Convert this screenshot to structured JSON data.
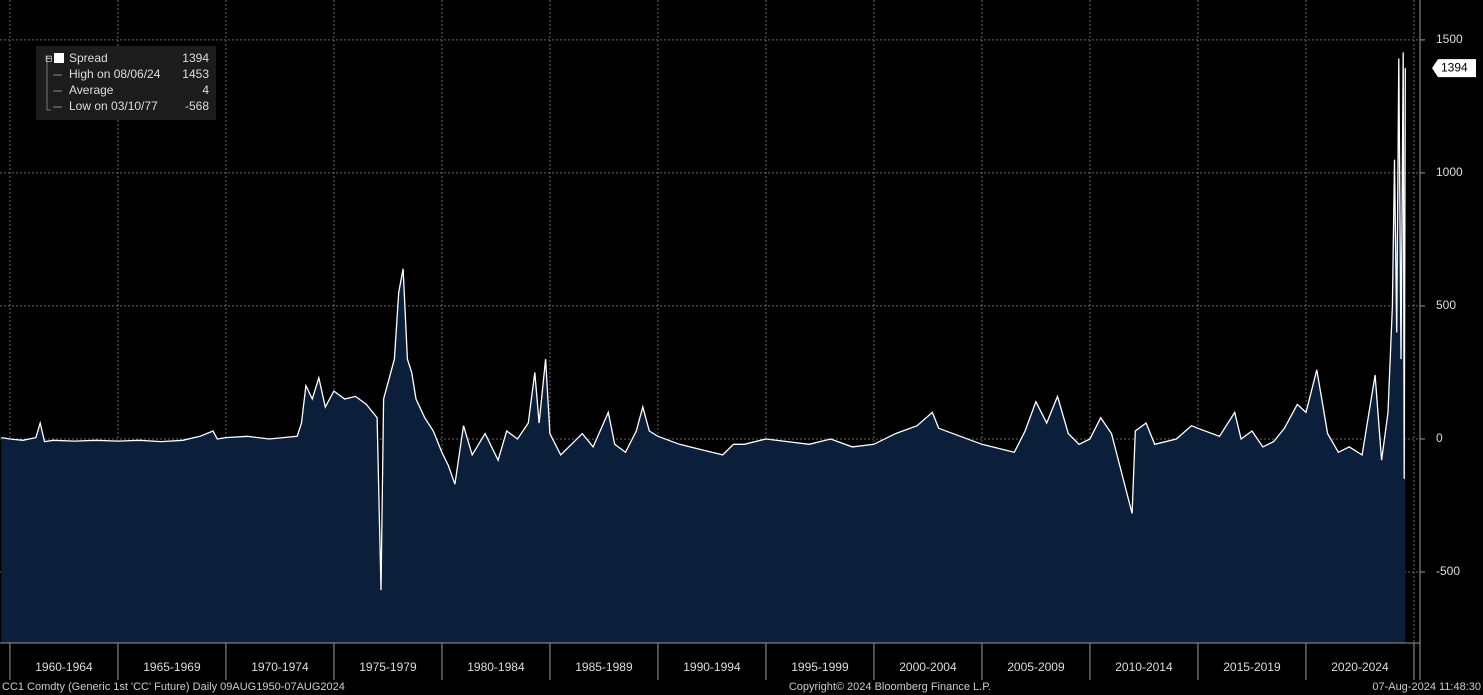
{
  "chart_data": {
    "type": "area",
    "footer_left": "CC1 Comdty (Generic 1st 'CC' Future)  Daily 09AUG1950-07AUG2024",
    "footer_center": "Copyright© 2024 Bloomberg Finance L.P.",
    "footer_right": "07-Aug-2024 11:48:30",
    "legend_stats": [
      {
        "label": "High on 08/06/24",
        "value": 1453
      },
      {
        "label": "Average",
        "value": 4
      },
      {
        "label": "Low on 03/10/77",
        "value": -568
      }
    ],
    "last_value": 1394,
    "xlim": [
      1959.54,
      2025.28
    ],
    "xticks": [
      1960,
      1965,
      1970,
      1975,
      1980,
      1985,
      1990,
      1995,
      2000,
      2005,
      2010,
      2015,
      2020,
      2025
    ],
    "xtick_labels": [
      "1960-1964",
      "1965-1969",
      "1970-1974",
      "1975-1979",
      "1980-1984",
      "1985-1989",
      "1990-1994",
      "1995-1999",
      "2000-2004",
      "2005-2009",
      "2010-2014",
      "2015-2019",
      "2020-2024"
    ],
    "ylim": [
      -767,
      1650
    ],
    "yticks": [
      -500,
      0,
      500,
      1000,
      1500
    ],
    "grid": true,
    "x": [
      1959.6,
      1960,
      1960.6,
      1961.2,
      1961.4,
      1961.6,
      1962,
      1963,
      1964,
      1965,
      1966,
      1967,
      1968,
      1968.8,
      1969.4,
      1969.6,
      1970,
      1971,
      1972,
      1973.3,
      1973.5,
      1973.7,
      1974,
      1974.3,
      1974.6,
      1975,
      1975.5,
      1976,
      1976.5,
      1977.0,
      1977.18,
      1977.3,
      1977.8,
      1978,
      1978.2,
      1978.4,
      1978.6,
      1978.8,
      1979.2,
      1979.6,
      1980,
      1980.3,
      1980.6,
      1981,
      1981.4,
      1982,
      1982.6,
      1983,
      1983.5,
      1984,
      1984.3,
      1984.5,
      1984.8,
      1985,
      1985.5,
      1986,
      1986.5,
      1987,
      1987.7,
      1988,
      1988.5,
      1989,
      1989.3,
      1989.6,
      1990,
      1991,
      1992,
      1993,
      1993.5,
      1994,
      1995,
      1996,
      1997,
      1998,
      1999,
      2000,
      2001,
      2002,
      2002.7,
      2003,
      2004,
      2005,
      2006,
      2006.5,
      2007,
      2007.5,
      2008,
      2008.5,
      2009,
      2009.5,
      2010,
      2010.5,
      2011,
      2011.95,
      2012.1,
      2012.6,
      2013,
      2014,
      2014.7,
      2015,
      2016,
      2016.7,
      2017,
      2017.5,
      2018,
      2018.5,
      2019,
      2019.6,
      2020,
      2020.5,
      2021,
      2021.5,
      2022,
      2022.6,
      2023.2,
      2023.5,
      2023.8,
      2024.0,
      2024.1,
      2024.2,
      2024.3,
      2024.4,
      2024.5,
      2024.55,
      2024.6
    ],
    "series": [
      {
        "name": "Spread",
        "color": "#ffffff",
        "fill": "#0b1f3a",
        "values": [
          5,
          0,
          -5,
          5,
          60,
          -10,
          -5,
          -8,
          -5,
          -8,
          -5,
          -10,
          -5,
          10,
          30,
          0,
          5,
          10,
          0,
          10,
          60,
          200,
          150,
          230,
          120,
          180,
          150,
          160,
          130,
          80,
          -568,
          150,
          300,
          550,
          640,
          300,
          250,
          150,
          80,
          30,
          -50,
          -100,
          -170,
          50,
          -60,
          20,
          -80,
          30,
          0,
          60,
          250,
          60,
          300,
          20,
          -60,
          -20,
          20,
          -30,
          100,
          -20,
          -50,
          30,
          120,
          30,
          10,
          -20,
          -40,
          -60,
          -20,
          -20,
          0,
          -10,
          -20,
          0,
          -30,
          -20,
          20,
          50,
          100,
          40,
          10,
          -20,
          -40,
          -50,
          30,
          140,
          60,
          160,
          20,
          -20,
          0,
          80,
          20,
          -280,
          30,
          60,
          -20,
          0,
          50,
          40,
          10,
          100,
          0,
          30,
          -30,
          -10,
          40,
          130,
          100,
          260,
          20,
          -50,
          -30,
          -60,
          240,
          -80,
          100,
          500,
          1050,
          400,
          1430,
          300,
          1453,
          -150,
          1394
        ]
      }
    ]
  }
}
